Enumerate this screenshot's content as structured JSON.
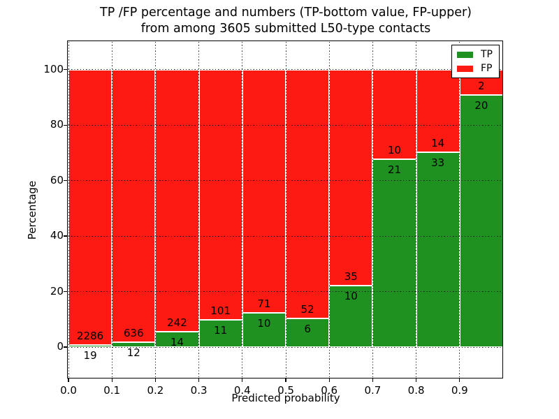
{
  "title": {
    "line1": "TP /FP percentage and numbers (TP-bottom value, FP-upper)",
    "line2": "from among 3605 submitted L50-type contacts"
  },
  "axes": {
    "xlabel": "Predicted probability",
    "ylabel": "Percentage",
    "xtick_labels": [
      "0.0",
      "0.1",
      "0.2",
      "0.3",
      "0.4",
      "0.5",
      "0.6",
      "0.7",
      "0.8",
      "0.9"
    ],
    "xtick_values": [
      0.0,
      0.1,
      0.2,
      0.3,
      0.4,
      0.5,
      0.6,
      0.7,
      0.8,
      0.9
    ],
    "ytick_labels": [
      "0",
      "20",
      "40",
      "60",
      "80",
      "100"
    ],
    "ytick_values": [
      0,
      20,
      40,
      60,
      80,
      100
    ],
    "xlim": [
      0.0,
      1.0
    ],
    "ylim": [
      -11.3,
      110
    ],
    "grid": "dotted"
  },
  "legend": {
    "position": "upper right",
    "entries": [
      {
        "label": "TP",
        "color": "#1e9120"
      },
      {
        "label": "FP",
        "color": "#fc1a12"
      }
    ]
  },
  "chart_data": {
    "type": "bar",
    "stacked": true,
    "normalization": "each 0.1-wide probability bin scaled to 100%",
    "title": "TP /FP percentage and numbers (TP-bottom value, FP-upper) from among 3605 submitted L50-type contacts",
    "xlabel": "Predicted probability",
    "ylabel": "Percentage",
    "xlim": [
      0.0,
      1.0
    ],
    "ylim": [
      -11.3,
      110
    ],
    "grid": true,
    "legend_position": "upper right",
    "total_submitted": 3605,
    "bin_width": 0.1,
    "categories": [
      "0.0-0.1",
      "0.1-0.2",
      "0.2-0.3",
      "0.3-0.4",
      "0.4-0.5",
      "0.5-0.6",
      "0.6-0.7",
      "0.7-0.8",
      "0.8-0.9",
      "0.9-1.0"
    ],
    "series": [
      {
        "name": "TP",
        "color": "#1e9120",
        "counts": [
          19,
          12,
          14,
          11,
          10,
          6,
          10,
          21,
          33,
          20
        ],
        "percent": [
          0.82,
          1.85,
          5.47,
          9.82,
          12.35,
          10.34,
          22.22,
          67.74,
          70.21,
          90.91
        ]
      },
      {
        "name": "FP",
        "color": "#fc1a12",
        "counts": [
          2286,
          636,
          242,
          101,
          71,
          52,
          35,
          10,
          14,
          2
        ],
        "percent": [
          99.18,
          98.15,
          94.53,
          90.18,
          87.65,
          89.66,
          77.78,
          32.26,
          29.79,
          9.09
        ]
      }
    ]
  }
}
